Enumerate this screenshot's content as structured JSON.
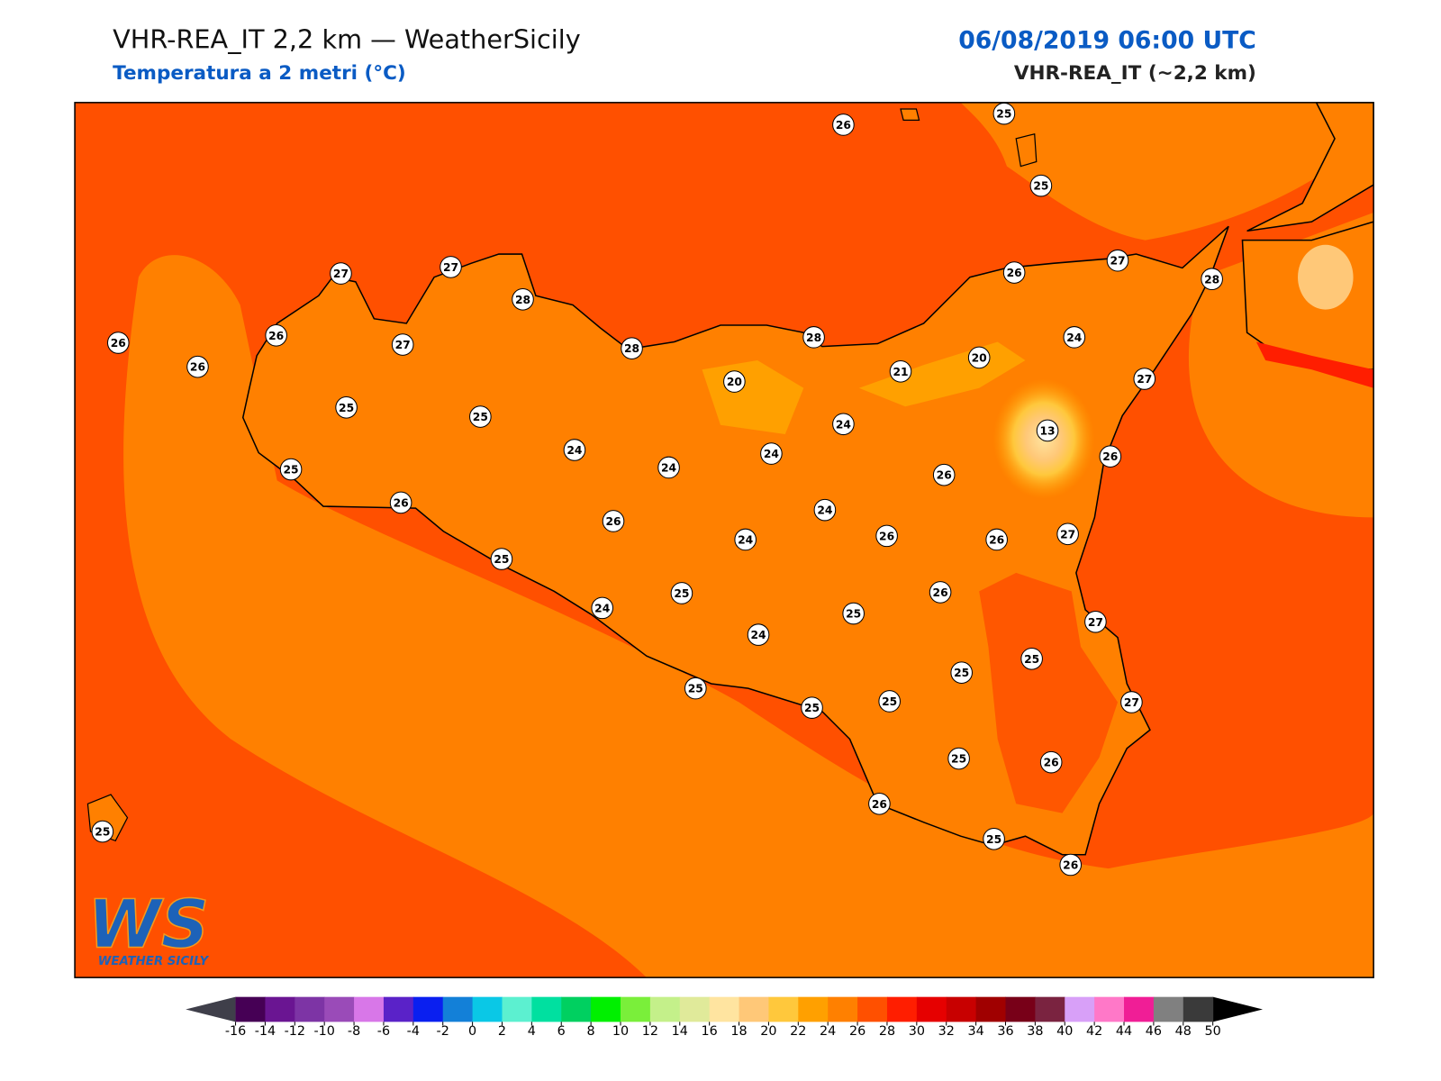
{
  "header": {
    "title": "VHR-REA_IT 2,2 km — WeatherSicily",
    "subtitle": "Temperatura a 2 metri (°C)",
    "datetime": "06/08/2019 06:00 UTC",
    "model": "VHR-REA_IT (~2,2 km)"
  },
  "logo": {
    "text": "WS",
    "caption": "WEATHER SICILY"
  },
  "stations": [
    26,
    25,
    25,
    27,
    27,
    28,
    26,
    27,
    28,
    26,
    26,
    27,
    28,
    28,
    24,
    26,
    20,
    21,
    20,
    27,
    25,
    25,
    24,
    13,
    24,
    24,
    24,
    26,
    25,
    26,
    26,
    24,
    26,
    24,
    26,
    26,
    27,
    25,
    25,
    26,
    24,
    25,
    27,
    24,
    25,
    25,
    25,
    25,
    25,
    27,
    25,
    26,
    26,
    25,
    25,
    26
  ],
  "colorbar": {
    "ticks": [
      -16,
      -14,
      -12,
      -10,
      -8,
      -6,
      -4,
      -2,
      0,
      2,
      4,
      6,
      8,
      10,
      12,
      14,
      16,
      18,
      20,
      22,
      24,
      26,
      28,
      30,
      32,
      34,
      36,
      38,
      40,
      42,
      44,
      46,
      48,
      50
    ],
    "colors": [
      "#460055",
      "#6a1592",
      "#7d34a5",
      "#9a4bb8",
      "#d877e8",
      "#5a22c8",
      "#0a1ff0",
      "#1380d8",
      "#0ac8e6",
      "#5cf0d0",
      "#00e0a0",
      "#00d060",
      "#00f000",
      "#7aef3a",
      "#c4f08a",
      "#e0ea9a",
      "#ffe4a0",
      "#ffc878",
      "#ffc83c",
      "#ffa000",
      "#ff8000",
      "#ff5000",
      "#ff1e00",
      "#e60000",
      "#c80000",
      "#a00000",
      "#780018",
      "#7a2340",
      "#d8a0f8",
      "#ff78c8",
      "#f01e96",
      "#808080",
      "#3a3a3a"
    ],
    "under_color": "#3f3f4a",
    "over_color": "#000000"
  }
}
